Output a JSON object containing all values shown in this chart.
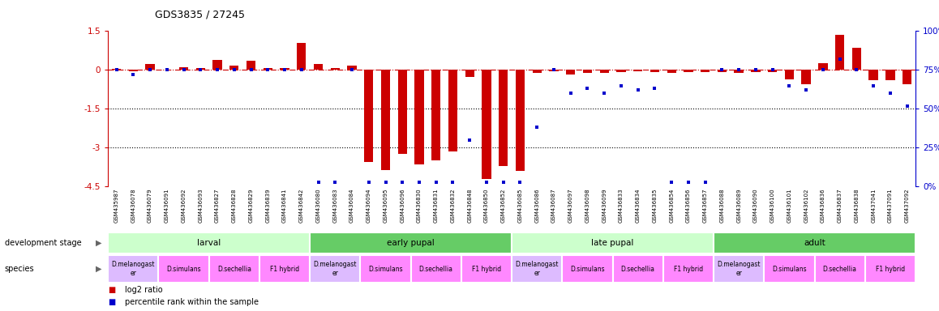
{
  "title": "GDS3835 / 27245",
  "samples": [
    "GSM435987",
    "GSM436078",
    "GSM436079",
    "GSM436091",
    "GSM436092",
    "GSM436093",
    "GSM436827",
    "GSM436828",
    "GSM436829",
    "GSM436839",
    "GSM436841",
    "GSM436842",
    "GSM436080",
    "GSM436083",
    "GSM436084",
    "GSM436094",
    "GSM436095",
    "GSM436096",
    "GSM436830",
    "GSM436831",
    "GSM436832",
    "GSM436848",
    "GSM436850",
    "GSM436852",
    "GSM436085",
    "GSM436086",
    "GSM436087",
    "GSM436097",
    "GSM436098",
    "GSM436099",
    "GSM436833",
    "GSM436834",
    "GSM436835",
    "GSM436854",
    "GSM436856",
    "GSM436857",
    "GSM436088",
    "GSM436089",
    "GSM436090",
    "GSM436100",
    "GSM436101",
    "GSM436102",
    "GSM436836",
    "GSM436837",
    "GSM436838",
    "GSM437041",
    "GSM437091",
    "GSM437092"
  ],
  "log2_ratio": [
    0.04,
    -0.05,
    0.22,
    0.0,
    0.12,
    0.08,
    0.38,
    0.18,
    0.35,
    0.08,
    0.06,
    1.05,
    0.22,
    0.06,
    0.18,
    -3.55,
    -3.85,
    -3.25,
    -3.65,
    -3.5,
    -3.15,
    -0.28,
    -4.2,
    -3.7,
    -3.9,
    -0.12,
    -0.06,
    -0.18,
    -0.12,
    -0.1,
    -0.08,
    -0.06,
    -0.08,
    -0.1,
    -0.08,
    -0.08,
    -0.08,
    -0.1,
    -0.08,
    -0.08,
    -0.35,
    -0.55,
    0.25,
    1.35,
    0.85,
    -0.38,
    -0.38,
    -0.55
  ],
  "percentile": [
    75,
    72,
    75,
    75,
    75,
    75,
    75,
    75,
    75,
    75,
    75,
    75,
    3,
    3,
    75,
    3,
    3,
    3,
    3,
    3,
    3,
    30,
    3,
    3,
    3,
    38,
    75,
    60,
    63,
    60,
    65,
    62,
    63,
    3,
    3,
    3,
    75,
    75,
    75,
    75,
    65,
    62,
    75,
    82,
    75,
    65,
    60,
    52
  ],
  "ylim_left": [
    -4.5,
    1.5
  ],
  "ylim_right": [
    0,
    100
  ],
  "yticks_left": [
    1.5,
    0,
    -1.5,
    -3,
    -4.5
  ],
  "yticks_right": [
    100,
    75,
    50,
    25,
    0
  ],
  "hline_y": 0,
  "hline_dotted": [
    -1.5,
    -3
  ],
  "bar_color": "#cc0000",
  "dot_color": "#0000cc",
  "hline_color": "#cc0000",
  "stage_groups": [
    {
      "label": "larval",
      "start": 0,
      "end": 12,
      "color": "#ccffcc"
    },
    {
      "label": "early pupal",
      "start": 12,
      "end": 24,
      "color": "#66cc66"
    },
    {
      "label": "late pupal",
      "start": 24,
      "end": 36,
      "color": "#ccffcc"
    },
    {
      "label": "adult",
      "start": 36,
      "end": 48,
      "color": "#66cc66"
    }
  ],
  "species_groups": [
    {
      "label": "D.melanogast\ner",
      "start": 0,
      "end": 3,
      "color": "#ddbbff"
    },
    {
      "label": "D.simulans",
      "start": 3,
      "end": 6,
      "color": "#ff88ff"
    },
    {
      "label": "D.sechellia",
      "start": 6,
      "end": 9,
      "color": "#ff88ff"
    },
    {
      "label": "F1 hybrid",
      "start": 9,
      "end": 12,
      "color": "#ff88ff"
    },
    {
      "label": "D.melanogast\ner",
      "start": 12,
      "end": 15,
      "color": "#ddbbff"
    },
    {
      "label": "D.simulans",
      "start": 15,
      "end": 18,
      "color": "#ff88ff"
    },
    {
      "label": "D.sechellia",
      "start": 18,
      "end": 21,
      "color": "#ff88ff"
    },
    {
      "label": "F1 hybrid",
      "start": 21,
      "end": 24,
      "color": "#ff88ff"
    },
    {
      "label": "D.melanogast\ner",
      "start": 24,
      "end": 27,
      "color": "#ddbbff"
    },
    {
      "label": "D.simulans",
      "start": 27,
      "end": 30,
      "color": "#ff88ff"
    },
    {
      "label": "D.sechellia",
      "start": 30,
      "end": 33,
      "color": "#ff88ff"
    },
    {
      "label": "F1 hybrid",
      "start": 33,
      "end": 36,
      "color": "#ff88ff"
    },
    {
      "label": "D.melanogast\ner",
      "start": 36,
      "end": 39,
      "color": "#ddbbff"
    },
    {
      "label": "D.simulans",
      "start": 39,
      "end": 42,
      "color": "#ff88ff"
    },
    {
      "label": "D.sechellia",
      "start": 42,
      "end": 45,
      "color": "#ff88ff"
    },
    {
      "label": "F1 hybrid",
      "start": 45,
      "end": 48,
      "color": "#ff88ff"
    }
  ],
  "legend_items": [
    {
      "label": "log2 ratio",
      "color": "#cc0000",
      "marker": "s"
    },
    {
      "label": "percentile rank within the sample",
      "color": "#0000cc",
      "marker": "s"
    }
  ],
  "tick_fontsize": 7.5,
  "bar_width": 0.55,
  "bg_color": "#ffffff"
}
